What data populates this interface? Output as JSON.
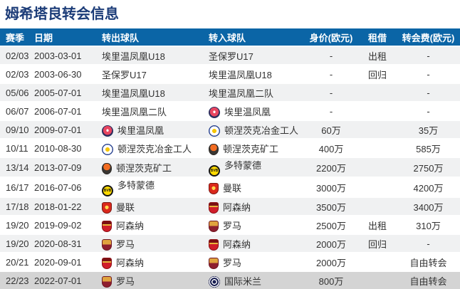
{
  "page_title": "姆希塔良转会信息",
  "colors": {
    "header_bg": "#0b65a6",
    "title_color": "#1c3c78",
    "row_alt": "#f0f1f2",
    "row_highlight": "#d4d4d4",
    "text": "#333333"
  },
  "table": {
    "headers": {
      "season": "赛季",
      "date": "日期",
      "out_team": "转出球队",
      "in_team": "转入球队",
      "value": "身价(欧元)",
      "loan": "租借",
      "fee": "转会费(欧元)"
    },
    "rows": [
      {
        "season": "02/03",
        "date": "2003-03-01",
        "out_team": "埃里温凤凰U18",
        "out_logo": "",
        "in_team": "圣保罗U17",
        "in_logo": "",
        "value": "-",
        "loan": "出租",
        "fee": "-"
      },
      {
        "season": "02/03",
        "date": "2003-06-30",
        "out_team": "圣保罗U17",
        "out_logo": "",
        "in_team": "埃里温凤凰U18",
        "in_logo": "",
        "value": "-",
        "loan": "回归",
        "fee": "-"
      },
      {
        "season": "05/06",
        "date": "2005-07-01",
        "out_team": "埃里温凤凰U18",
        "out_logo": "",
        "in_team": "埃里温凤凰二队",
        "in_logo": "",
        "value": "-",
        "loan": "",
        "fee": "-"
      },
      {
        "season": "06/07",
        "date": "2006-07-01",
        "out_team": "埃里温凤凰二队",
        "out_logo": "",
        "in_team": "埃里温凤凰",
        "in_logo": "pyunik",
        "value": "-",
        "loan": "",
        "fee": "-"
      },
      {
        "season": "09/10",
        "date": "2009-07-01",
        "out_team": "埃里温凤凰",
        "out_logo": "pyunik",
        "in_team": "顿涅茨克冶金工人",
        "in_logo": "metalurh",
        "value": "60万",
        "loan": "",
        "fee": "35万"
      },
      {
        "season": "10/11",
        "date": "2010-08-30",
        "out_team": "顿涅茨克冶金工人",
        "out_logo": "metalurh",
        "in_team": "顿涅茨克矿工",
        "in_logo": "shakhtar",
        "value": "400万",
        "loan": "",
        "fee": "585万"
      },
      {
        "season": "13/14",
        "date": "2013-07-09",
        "out_team": "顿涅茨克矿工",
        "out_logo": "shakhtar",
        "in_team": "多特蒙德",
        "in_logo": "dortmund",
        "value": "2200万",
        "loan": "",
        "fee": "2750万"
      },
      {
        "season": "16/17",
        "date": "2016-07-06",
        "out_team": "多特蒙德",
        "out_logo": "dortmund",
        "in_team": "曼联",
        "in_logo": "manutd",
        "value": "3000万",
        "loan": "",
        "fee": "4200万"
      },
      {
        "season": "17/18",
        "date": "2018-01-22",
        "out_team": "曼联",
        "out_logo": "manutd",
        "in_team": "阿森纳",
        "in_logo": "arsenal",
        "value": "3500万",
        "loan": "",
        "fee": "3400万"
      },
      {
        "season": "19/20",
        "date": "2019-09-02",
        "out_team": "阿森纳",
        "out_logo": "arsenal",
        "in_team": "罗马",
        "in_logo": "roma",
        "value": "2500万",
        "loan": "出租",
        "fee": "310万"
      },
      {
        "season": "19/20",
        "date": "2020-08-31",
        "out_team": "罗马",
        "out_logo": "roma",
        "in_team": "阿森纳",
        "in_logo": "arsenal",
        "value": "2000万",
        "loan": "回归",
        "fee": "-"
      },
      {
        "season": "20/21",
        "date": "2020-09-01",
        "out_team": "阿森纳",
        "out_logo": "arsenal",
        "in_team": "罗马",
        "in_logo": "roma",
        "value": "2000万",
        "loan": "",
        "fee": "自由转会"
      },
      {
        "season": "22/23",
        "date": "2022-07-01",
        "out_team": "罗马",
        "out_logo": "roma",
        "in_team": "国际米兰",
        "in_logo": "inter",
        "value": "800万",
        "loan": "",
        "fee": "自由转会",
        "highlight": true
      }
    ]
  }
}
